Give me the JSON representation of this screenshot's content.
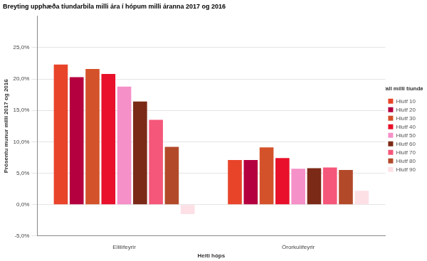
{
  "chart_data": {
    "type": "bar",
    "title": "Breyting upphæða tíundarbila milli ára í hópum milli áranna 2017 og 2016",
    "x_label": "Heiti hóps",
    "y_label": "Prósentu munur milli 2017 og 2016",
    "legend_title": "Hlutfall milli tíundarbila",
    "legend": "right",
    "grid": true,
    "categories": [
      "Ellilífeyrir",
      "Örorkulífeyrir"
    ],
    "series": [
      {
        "name": "Hlutf 10",
        "color": "#e8442a",
        "values": [
          22.3,
          7.1
        ]
      },
      {
        "name": "Hlutf 20",
        "color": "#b5003f",
        "values": [
          20.3,
          7.1
        ]
      },
      {
        "name": "Hlutf 30",
        "color": "#d4522a",
        "values": [
          21.6,
          9.1
        ]
      },
      {
        "name": "Hlutf 40",
        "color": "#e8102a",
        "values": [
          20.8,
          7.4
        ]
      },
      {
        "name": "Hlutf 50",
        "color": "#f590c8",
        "values": [
          18.8,
          5.7
        ]
      },
      {
        "name": "Hlutf 60",
        "color": "#7b2a17",
        "values": [
          16.4,
          5.8
        ]
      },
      {
        "name": "Hlutf 70",
        "color": "#f5577a",
        "values": [
          13.5,
          5.9
        ]
      },
      {
        "name": "Hlutf 80",
        "color": "#b24a2a",
        "values": [
          9.2,
          5.5
        ]
      },
      {
        "name": "Hlutf 90",
        "color": "#fde0e6",
        "values": [
          -1.5,
          2.2
        ]
      }
    ],
    "ylim": [
      -5,
      30
    ],
    "yticks": [
      {
        "value": -5,
        "label": "-5,0%"
      },
      {
        "value": 0,
        "label": "0,0%"
      },
      {
        "value": 5,
        "label": "5,0%"
      },
      {
        "value": 10,
        "label": "10,0%"
      },
      {
        "value": 15,
        "label": "15,0%"
      },
      {
        "value": 20,
        "label": "20,0%"
      },
      {
        "value": 25,
        "label": "25,0%"
      }
    ]
  }
}
